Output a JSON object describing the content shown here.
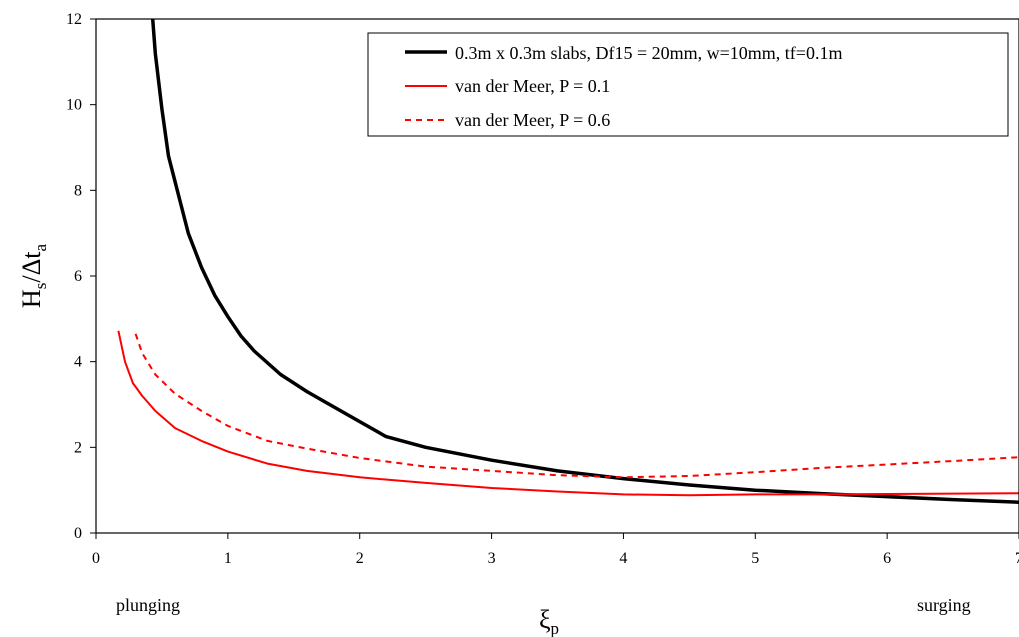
{
  "chart_data": {
    "type": "line",
    "title": "",
    "xlabel": "ξ",
    "xlabel_sub": "p",
    "ylabel_parts": [
      "H",
      "s",
      "/Δt",
      "a"
    ],
    "xlim": [
      0,
      7
    ],
    "ylim": [
      0,
      12
    ],
    "xticks": [
      0,
      1,
      2,
      3,
      4,
      5,
      6,
      7
    ],
    "yticks": [
      0,
      2,
      4,
      6,
      8,
      10,
      12
    ],
    "grid": false,
    "legend_position": "top-right",
    "annotations": {
      "left": "plunging",
      "right": "surging"
    },
    "series": [
      {
        "name": "0.3m x 0.3m slabs, Df15 = 20mm, w=10mm, tf=0.1m",
        "color": "#000000",
        "style": "solid",
        "x": [
          0.43,
          0.45,
          0.5,
          0.55,
          0.6,
          0.65,
          0.7,
          0.8,
          0.9,
          1.0,
          1.1,
          1.2,
          1.4,
          1.6,
          1.8,
          2.0,
          2.2,
          2.5,
          3.0,
          3.5,
          4.0,
          4.5,
          5.0,
          5.5,
          6.0,
          6.5,
          7.0
        ],
        "y": [
          12.0,
          11.2,
          9.9,
          8.8,
          8.2,
          7.6,
          7.0,
          6.2,
          5.55,
          5.05,
          4.6,
          4.25,
          3.7,
          3.3,
          2.95,
          2.6,
          2.25,
          2.0,
          1.7,
          1.45,
          1.27,
          1.12,
          1.0,
          0.92,
          0.85,
          0.78,
          0.72
        ]
      },
      {
        "name": "van der Meer, P = 0.1",
        "color": "#ff0000",
        "style": "solid",
        "x": [
          0.17,
          0.22,
          0.28,
          0.35,
          0.45,
          0.6,
          0.8,
          1.0,
          1.3,
          1.6,
          2.0,
          2.5,
          3.0,
          3.5,
          4.0,
          4.5,
          5.0,
          5.5,
          6.0,
          6.5,
          7.0
        ],
        "y": [
          4.72,
          4.0,
          3.5,
          3.2,
          2.85,
          2.45,
          2.15,
          1.9,
          1.62,
          1.45,
          1.3,
          1.17,
          1.05,
          0.97,
          0.9,
          0.88,
          0.9,
          0.9,
          0.91,
          0.92,
          0.93
        ]
      },
      {
        "name": "van der Meer, P = 0.6",
        "color": "#ff0000",
        "style": "dashed",
        "x": [
          0.3,
          0.35,
          0.45,
          0.6,
          0.8,
          1.0,
          1.3,
          1.6,
          2.0,
          2.5,
          3.0,
          3.5,
          4.0,
          4.5,
          5.0,
          5.5,
          6.0,
          6.5,
          7.0
        ],
        "y": [
          4.65,
          4.2,
          3.7,
          3.25,
          2.85,
          2.5,
          2.15,
          1.97,
          1.75,
          1.55,
          1.45,
          1.35,
          1.3,
          1.33,
          1.42,
          1.52,
          1.6,
          1.68,
          1.77
        ]
      }
    ]
  }
}
